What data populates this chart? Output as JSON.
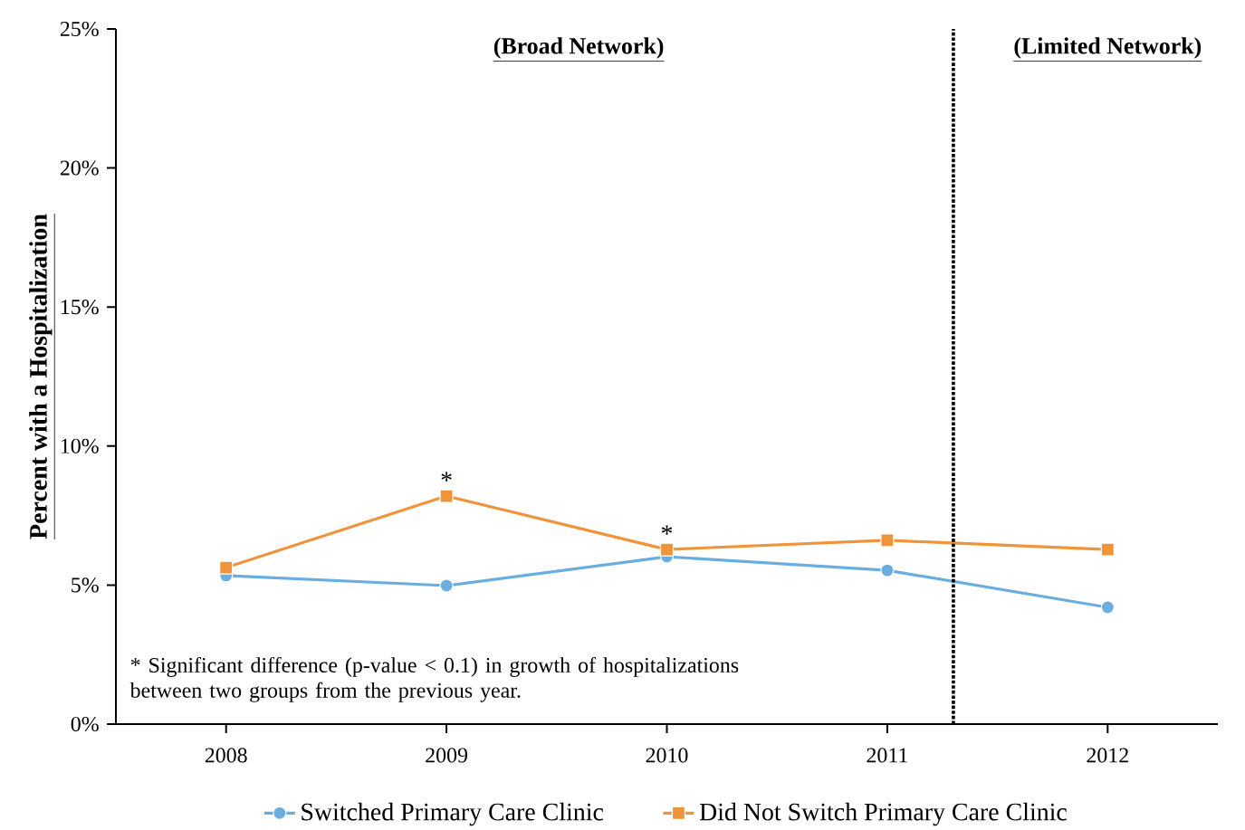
{
  "chart_data": {
    "type": "line",
    "ylabel": "Percent with a Hospitalization",
    "x": [
      2008,
      2009,
      2010,
      2011,
      2012
    ],
    "series": [
      {
        "name": "Switched Primary Care Clinic",
        "color": "#6aaee0",
        "marker": "circle",
        "values": [
          5.34,
          4.98,
          6.02,
          5.53,
          4.2
        ]
      },
      {
        "name": "Did Not Switch Primary Care Clinic",
        "color": "#f0943c",
        "marker": "square",
        "values": [
          5.63,
          8.2,
          6.28,
          6.61,
          6.28
        ]
      }
    ],
    "xlim": [
      2007.5,
      2012.5
    ],
    "xticks": [
      2008,
      2009,
      2010,
      2011,
      2012
    ],
    "ylim": [
      0,
      25
    ],
    "yticks": [
      {
        "value": 0,
        "label": "0%"
      },
      {
        "value": 5,
        "label": "5%"
      },
      {
        "value": 10,
        "label": "10%"
      },
      {
        "value": 15,
        "label": "15%"
      },
      {
        "value": 20,
        "label": "20%"
      },
      {
        "value": 25,
        "label": "25%"
      }
    ],
    "ref_lines": [
      {
        "axis": "x",
        "value": 2011.3,
        "color": "#000000",
        "line_style": "dotted"
      }
    ],
    "annotations": [
      {
        "text": "*",
        "x": 2009,
        "y": 8.2
      },
      {
        "text": "*",
        "x": 2010,
        "y": 6.28
      },
      "* Significant difference (p-value < 0.1) in growth of hospitalizations between two groups from the previous year.",
      "(Broad Network)",
      "(Limited Network)"
    ],
    "grid": false,
    "legend": "bottom",
    "line_style": "solid"
  }
}
